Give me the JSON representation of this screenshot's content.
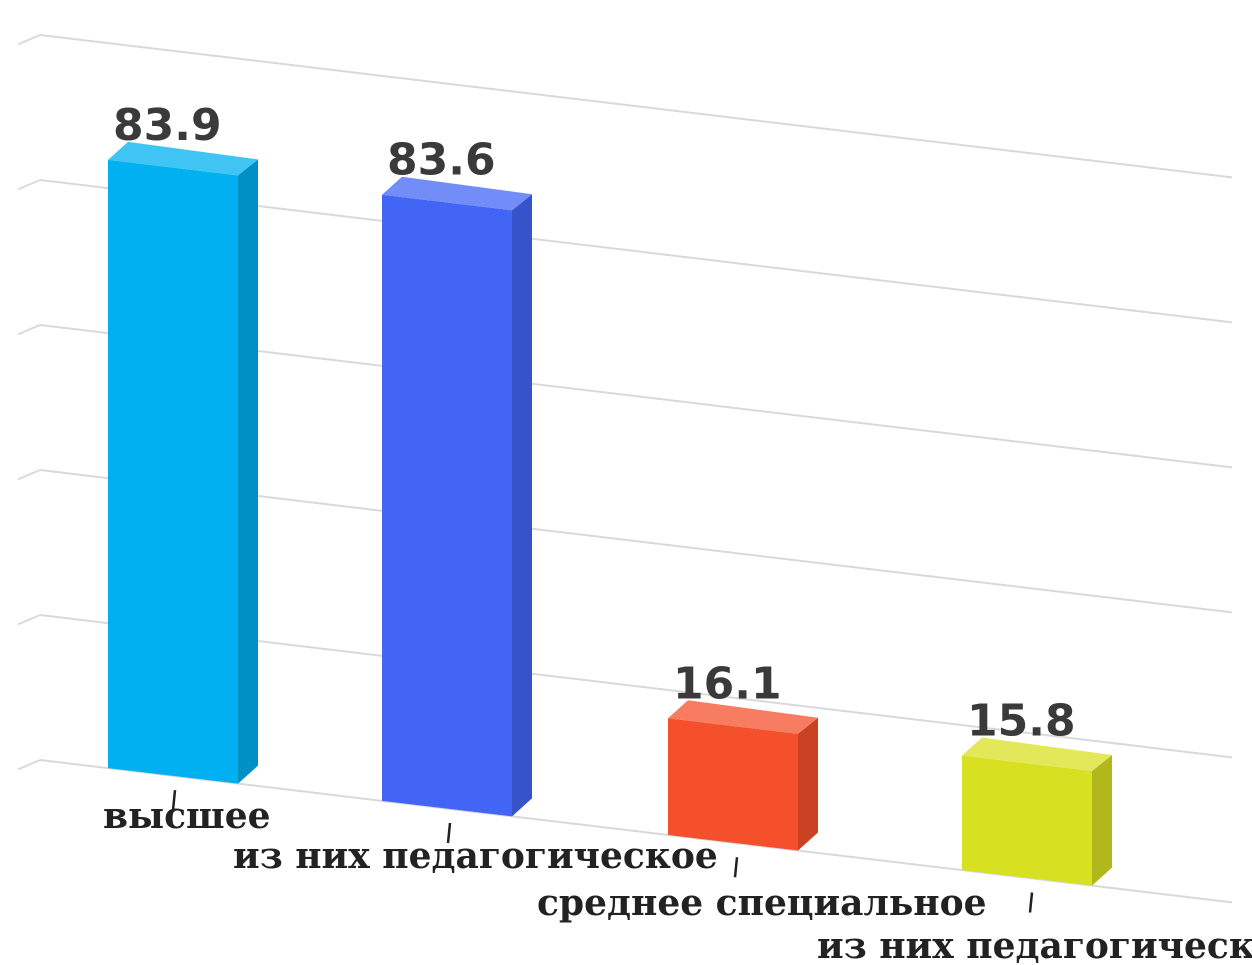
{
  "chart_data": {
    "type": "bar",
    "categories": [
      "высшее",
      "из них педагогическое",
      "среднее специальное",
      "из них педагогическое"
    ],
    "values": [
      83.9,
      83.6,
      16.1,
      15.8
    ],
    "value_labels": [
      "83.9",
      "83.6",
      "16.1",
      "15.8"
    ],
    "colors": [
      "#00b0f0",
      "#4365f5",
      "#f5502c",
      "#d8e022"
    ],
    "ylim": [
      0,
      100
    ],
    "grid": true,
    "legend": "none",
    "title": "",
    "xlabel": "",
    "ylabel": ""
  }
}
